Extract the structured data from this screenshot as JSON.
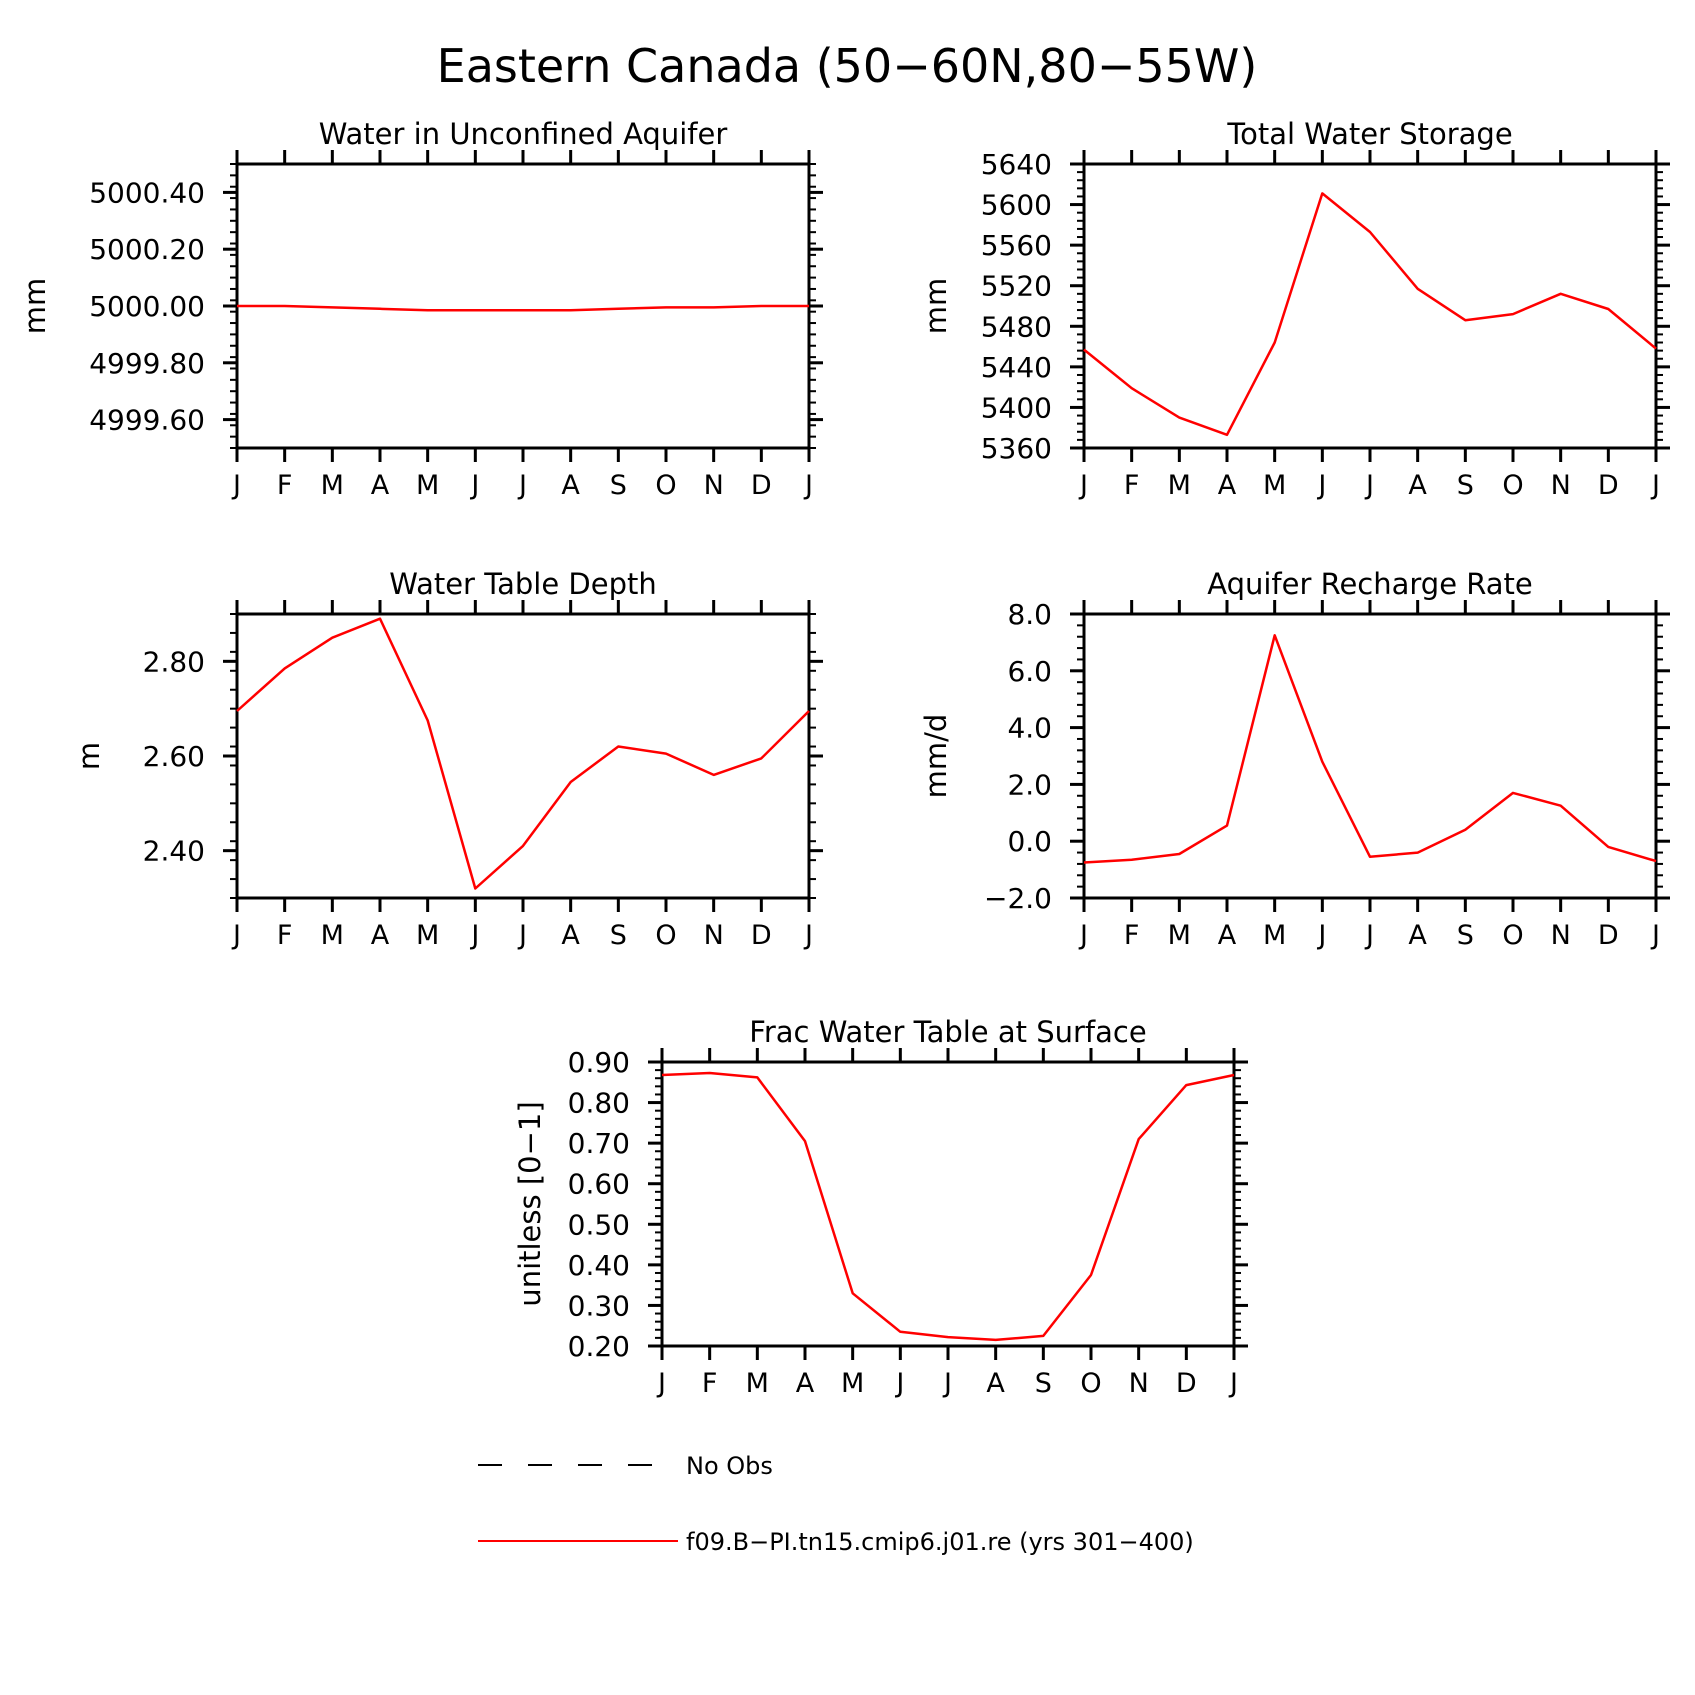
{
  "figure": {
    "title": "Eastern Canada (50-60N,80-55W)"
  },
  "colors": {
    "model_line": "#ff0000",
    "obs_line": "#000000",
    "axes": "#000000"
  },
  "legend": {
    "obs_label": "No Obs",
    "model_label": "f09.B-PI.tn15.cmip6.j01.re (yrs 301-400)"
  },
  "chart_data": [
    {
      "type": "line",
      "title": "Water in Unconfined Aquifer",
      "ylabel": "mm",
      "categories": [
        "J",
        "F",
        "M",
        "A",
        "M",
        "J",
        "J",
        "A",
        "S",
        "O",
        "N",
        "D",
        "J"
      ],
      "ylim": [
        4999.5,
        5000.5
      ],
      "yticks": [
        4999.6,
        4999.8,
        5000.0,
        5000.2,
        5000.4
      ],
      "ytick_labels": [
        "4999.60",
        "4999.80",
        "5000.00",
        "5000.20",
        "5000.40"
      ],
      "series": [
        {
          "values": [
            5000.0,
            5000.0,
            4999.995,
            4999.99,
            4999.985,
            4999.985,
            4999.985,
            4999.985,
            4999.99,
            4999.995,
            4999.995,
            5000.0,
            5000.0
          ]
        }
      ]
    },
    {
      "type": "line",
      "title": "Total Water Storage",
      "ylabel": "mm",
      "categories": [
        "J",
        "F",
        "M",
        "A",
        "M",
        "J",
        "J",
        "A",
        "S",
        "O",
        "N",
        "D",
        "J"
      ],
      "ylim": [
        5360,
        5640
      ],
      "yticks": [
        5360,
        5400,
        5440,
        5480,
        5520,
        5560,
        5600,
        5640
      ],
      "ytick_labels": [
        "5360",
        "5400",
        "5440",
        "5480",
        "5520",
        "5560",
        "5600",
        "5640"
      ],
      "series": [
        {
          "values": [
            5457,
            5419,
            5390,
            5373,
            5464,
            5611,
            5573,
            5517,
            5486,
            5492,
            5512,
            5497,
            5458
          ]
        }
      ]
    },
    {
      "type": "line",
      "title": "Water Table Depth",
      "ylabel": "m",
      "categories": [
        "J",
        "F",
        "M",
        "A",
        "M",
        "J",
        "J",
        "A",
        "S",
        "O",
        "N",
        "D",
        "J"
      ],
      "ylim": [
        2.3,
        2.9
      ],
      "yticks": [
        2.4,
        2.6,
        2.8
      ],
      "ytick_labels": [
        "2.40",
        "2.60",
        "2.80"
      ],
      "series": [
        {
          "values": [
            2.695,
            2.785,
            2.85,
            2.89,
            2.675,
            2.32,
            2.41,
            2.545,
            2.62,
            2.605,
            2.56,
            2.595,
            2.695
          ]
        }
      ]
    },
    {
      "type": "line",
      "title": "Aquifer Recharge Rate",
      "ylabel": "mm/d",
      "categories": [
        "J",
        "F",
        "M",
        "A",
        "M",
        "J",
        "J",
        "A",
        "S",
        "O",
        "N",
        "D",
        "J"
      ],
      "ylim": [
        -2.0,
        8.0
      ],
      "yticks": [
        -2.0,
        0.0,
        2.0,
        4.0,
        6.0,
        8.0
      ],
      "ytick_labels": [
        "-2.0",
        "0.0",
        "2.0",
        "4.0",
        "6.0",
        "8.0"
      ],
      "series": [
        {
          "values": [
            -0.75,
            -0.65,
            -0.45,
            0.55,
            7.25,
            2.8,
            -0.55,
            -0.4,
            0.4,
            1.7,
            1.25,
            -0.2,
            -0.7
          ]
        }
      ]
    },
    {
      "type": "line",
      "title": "Frac Water Table at Surface",
      "ylabel": "unitless [0-1]",
      "categories": [
        "J",
        "F",
        "M",
        "A",
        "M",
        "J",
        "J",
        "A",
        "S",
        "O",
        "N",
        "D",
        "J"
      ],
      "ylim": [
        0.2,
        0.9
      ],
      "yticks": [
        0.2,
        0.3,
        0.4,
        0.5,
        0.6,
        0.7,
        0.8,
        0.9
      ],
      "ytick_labels": [
        "0.20",
        "0.30",
        "0.40",
        "0.50",
        "0.60",
        "0.70",
        "0.80",
        "0.90"
      ],
      "series": [
        {
          "values": [
            0.868,
            0.873,
            0.862,
            0.705,
            0.33,
            0.235,
            0.222,
            0.215,
            0.225,
            0.375,
            0.71,
            0.843,
            0.868
          ]
        }
      ]
    }
  ]
}
